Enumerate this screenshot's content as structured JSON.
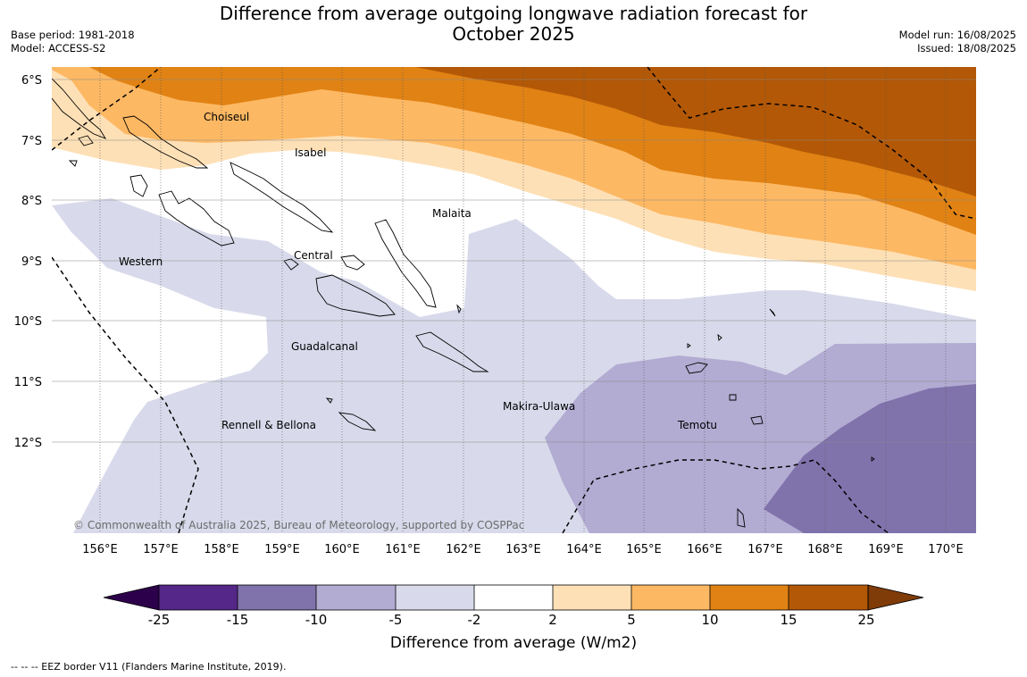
{
  "header": {
    "title_line1": "Difference from average outgoing longwave radiation forecast for",
    "title_line2": "October 2025",
    "base_period_label": "Base period:",
    "base_period": "1981-2018",
    "model_label": "Model:",
    "model": "ACCESS-S2",
    "model_run_label": "Model run:",
    "model_run": "16/08/2025",
    "issued_label": "Issued:",
    "issued": "18/08/2025"
  },
  "map": {
    "lat_labels": [
      "6°S",
      "7°S",
      "8°S",
      "9°S",
      "10°S",
      "11°S",
      "12°S"
    ],
    "lon_labels": [
      "156°E",
      "157°E",
      "158°E",
      "159°E",
      "160°E",
      "161°E",
      "162°E",
      "163°E",
      "164°E",
      "165°E",
      "166°E",
      "167°E",
      "168°E",
      "169°E",
      "170°E"
    ],
    "province_labels": [
      "Choiseul",
      "Isabel",
      "Malaita",
      "Western",
      "Central",
      "Guadalcanal",
      "Rennell & Bellona",
      "Makira-Ulawa",
      "Temotu"
    ],
    "copyright": "© Commonwealth of Australia 2025, Bureau of Meteorology, supported by COSPPac"
  },
  "colorbar": {
    "ticks": [
      "-25",
      "-15",
      "-10",
      "-5",
      "-2",
      "2",
      "5",
      "10",
      "15",
      "25"
    ],
    "colors": [
      "#542788",
      "#8073ac",
      "#b2abd2",
      "#d8daeb",
      "#ffffff",
      "#fee0b6",
      "#fdb863",
      "#e08214",
      "#b35806"
    ],
    "extend_low_color": "#2d004b",
    "extend_high_color": "#7f3b08",
    "label": "Difference from average (W/m2)"
  },
  "footer": {
    "legend_text": "--  --  -- EEZ border V11 (Flanders Marine Institute, 2019)."
  }
}
